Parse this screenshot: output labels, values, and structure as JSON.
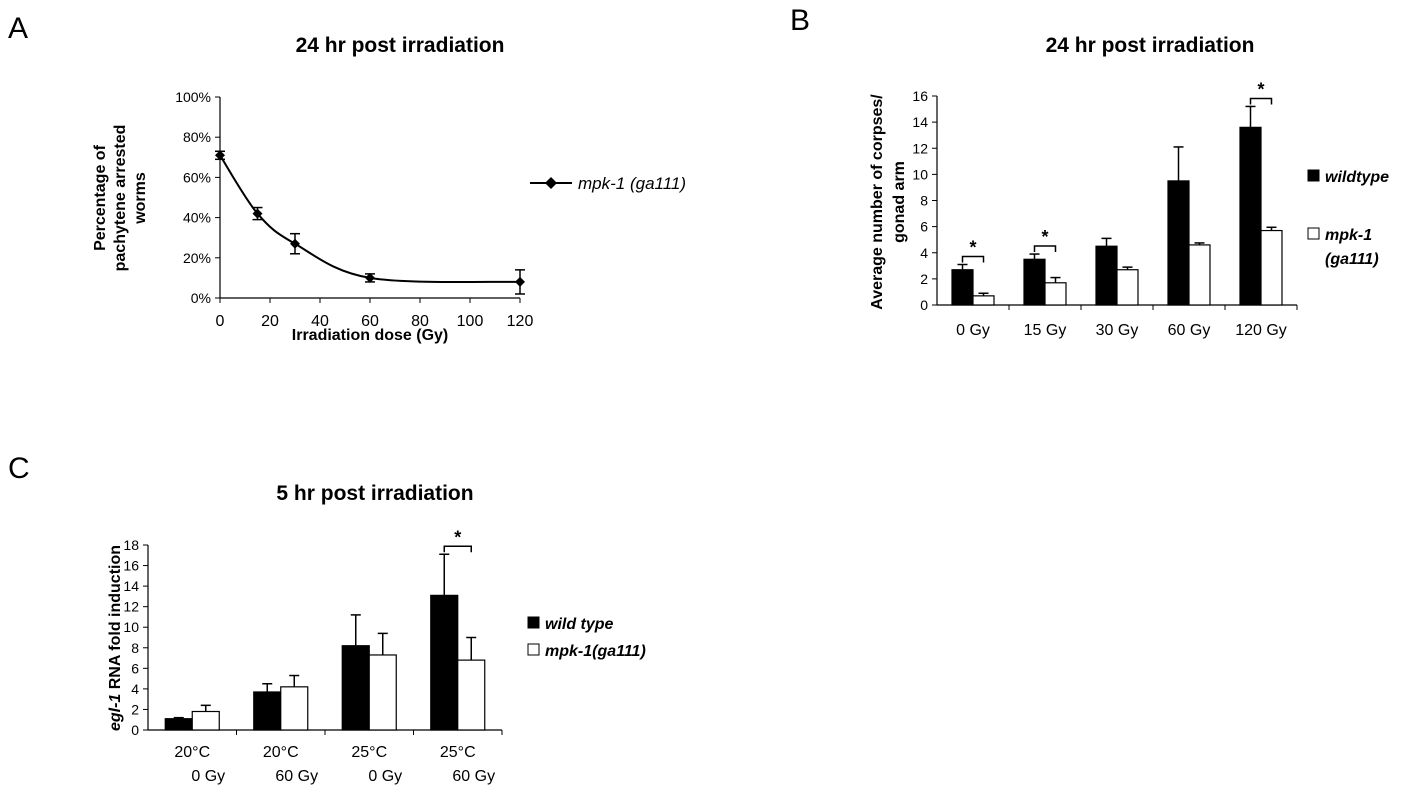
{
  "panels": {
    "a": {
      "letter": "A"
    },
    "b": {
      "letter": "B"
    },
    "c": {
      "letter": "C"
    }
  },
  "chart_data": [
    {
      "id": "a",
      "type": "line",
      "title": "24 hr post irradiation",
      "xlabel": "Irradiation dose (Gy)",
      "ylabel_lines": [
        "Percentage of",
        "pachytene arrested",
        "worms"
      ],
      "xlim": [
        0,
        120
      ],
      "ylim": [
        0,
        100
      ],
      "x_ticks": [
        "0",
        "20",
        "40",
        "60",
        "80",
        "100",
        "120"
      ],
      "y_ticks": [
        "0%",
        "20%",
        "40%",
        "60%",
        "80%",
        "100%"
      ],
      "series": [
        {
          "name": "mpk-1 (ga111)",
          "x": [
            0,
            15,
            30,
            60,
            120
          ],
          "y": [
            71,
            42,
            27,
            10,
            8
          ],
          "err": [
            2,
            3,
            5,
            2,
            6
          ]
        }
      ],
      "legend_position": "right",
      "color": "#000000"
    },
    {
      "id": "b",
      "type": "bar",
      "title": "24 hr post irradiation",
      "ylabel_lines": [
        "Average number of corpses/",
        "gonad arm"
      ],
      "categories": [
        "0 Gy",
        "15 Gy",
        "30 Gy",
        "60 Gy",
        "120 Gy"
      ],
      "ylim": [
        0,
        16
      ],
      "y_ticks": [
        "0",
        "2",
        "4",
        "6",
        "8",
        "10",
        "12",
        "14",
        "16"
      ],
      "series": [
        {
          "name": "wildtype",
          "fill": "#000000",
          "values": [
            2.7,
            3.5,
            4.5,
            9.5,
            13.6
          ],
          "err": [
            0.4,
            0.4,
            0.6,
            2.6,
            1.6
          ]
        },
        {
          "name_lines": [
            "mpk-1",
            "(ga111)"
          ],
          "fill": "#ffffff",
          "values": [
            0.7,
            1.7,
            2.7,
            4.6,
            5.7
          ],
          "err": [
            0.2,
            0.4,
            0.2,
            0.15,
            0.25
          ]
        }
      ],
      "significance": [
        {
          "category_index": 0,
          "label": "*"
        },
        {
          "category_index": 1,
          "label": "*"
        },
        {
          "category_index": 4,
          "label": "*"
        }
      ],
      "legend_position": "right"
    },
    {
      "id": "c",
      "type": "bar",
      "title": "5 hr post irradiation",
      "ylabel_parts": {
        "italic": "egl-1",
        "rest": " RNA fold induction"
      },
      "categories": [
        [
          "20°C",
          "0 Gy"
        ],
        [
          "20°C",
          "60 Gy"
        ],
        [
          "25°C",
          "0 Gy"
        ],
        [
          "25°C",
          "60 Gy"
        ]
      ],
      "ylim": [
        0,
        18
      ],
      "y_ticks": [
        "0",
        "2",
        "4",
        "6",
        "8",
        "10",
        "12",
        "14",
        "16",
        "18"
      ],
      "series": [
        {
          "name": "wild type",
          "fill": "#000000",
          "values": [
            1.1,
            3.7,
            8.2,
            13.1
          ],
          "err": [
            0.1,
            0.8,
            3.0,
            4.0
          ]
        },
        {
          "name": "mpk-1(ga111)",
          "fill": "#ffffff",
          "values": [
            1.8,
            4.2,
            7.3,
            6.8
          ],
          "err": [
            0.6,
            1.1,
            2.1,
            2.2
          ]
        }
      ],
      "significance": [
        {
          "category_index": 3,
          "label": "*"
        }
      ],
      "legend_position": "right"
    }
  ]
}
